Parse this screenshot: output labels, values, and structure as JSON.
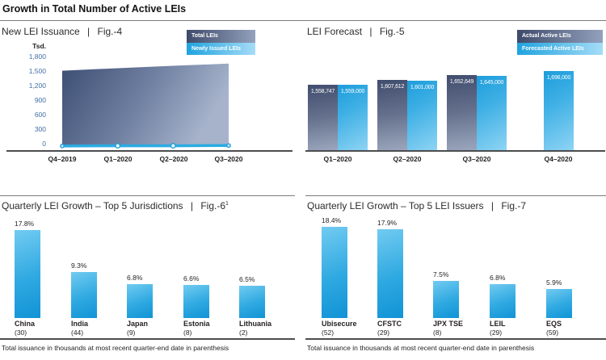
{
  "header": {
    "title": "Growth in Total Number of Active LEIs"
  },
  "colors": {
    "cyan": "#29abe2",
    "navy": "#3d4a6c",
    "light_cyan": "#8ed4f4",
    "axis_gray": "#4c4d4f",
    "tick_blue": "#406ea6"
  },
  "chart_data": [
    {
      "id": "fig4",
      "type": "area",
      "title": "New LEI Issuance",
      "fig": "Fig.-4",
      "title_display": "New LEI Issuance  |  Fig.-4",
      "legend": [
        "Total LEIs",
        "Newly Issued LEIs"
      ],
      "legend_position": "top-right",
      "grid": false,
      "y_unit": "Tsd.",
      "ylim": [
        0,
        1800
      ],
      "y_ticks": [
        "1,800",
        "1,500",
        "1,200",
        "900",
        "600",
        "300",
        "0"
      ],
      "categories": [
        "Q4–2019",
        "Q1–2020",
        "Q2–2020",
        "Q3–2020"
      ],
      "series": [
        {
          "name": "Total LEIs",
          "values": [
            1506,
            1559,
            1608,
            1653
          ]
        },
        {
          "name": "Newly Issued LEIs",
          "values": [
            35,
            40,
            40,
            45
          ]
        }
      ]
    },
    {
      "id": "fig5",
      "type": "bar",
      "title": "LEI Forecast",
      "fig": "Fig.-5",
      "title_display": "LEI Forecast  |  Fig.-5",
      "legend": [
        "Actual Active LEIs",
        "Forecasted Active LEIs"
      ],
      "legend_position": "top-right",
      "grid": false,
      "categories": [
        "Q1–2020",
        "Q2–2020",
        "Q3–2020",
        "Q4–2020"
      ],
      "series": [
        {
          "name": "Actual Active LEIs",
          "values": [
            1558747,
            1607612,
            1652649,
            null
          ],
          "labels": [
            "1,558,747",
            "1,607,612",
            "1,652,649",
            null
          ]
        },
        {
          "name": "Forecasted Active LEIs",
          "values": [
            1559000,
            1601000,
            1645000,
            1696000
          ],
          "labels": [
            "1,559,000",
            "1,601,000",
            "1,645,000",
            "1,696,000"
          ]
        }
      ]
    },
    {
      "id": "fig6",
      "type": "bar",
      "title": "Quarterly LEI Growth – Top 5 Jurisdictions",
      "fig": "Fig.-6",
      "fig_sup": "1",
      "title_display": "Quarterly LEI Growth – Top 5 Jurisdictions  |  Fig.-6",
      "categories": [
        "China",
        "India",
        "Japan",
        "Estonia",
        "Lithuania"
      ],
      "values": [
        17.8,
        9.3,
        6.8,
        6.6,
        6.5
      ],
      "value_labels": [
        "17.8%",
        "9.3%",
        "6.8%",
        "6.6%",
        "6.5%"
      ],
      "issuance": [
        30,
        44,
        9,
        8,
        2
      ],
      "issuance_labels": [
        "(30)",
        "(44)",
        "(9)",
        "(8)",
        "(2)"
      ],
      "footnote": "Total issuance in thousands at most recent quarter-end date in parenthesis",
      "grid": false
    },
    {
      "id": "fig7",
      "type": "bar",
      "title": "Quarterly LEI Growth – Top 5 LEI Issuers",
      "fig": "Fig.-7",
      "title_display": "Quarterly LEI Growth – Top 5 LEI Issuers  |  Fig.-7",
      "categories": [
        "Ubisecure",
        "CFSTC",
        "JPX TSE",
        "LEIL",
        "EQS"
      ],
      "values": [
        18.4,
        17.9,
        7.5,
        6.8,
        5.9
      ],
      "value_labels": [
        "18.4%",
        "17.9%",
        "7.5%",
        "6.8%",
        "5.9%"
      ],
      "issuance": [
        52,
        29,
        8,
        29,
        59
      ],
      "issuance_labels": [
        "(52)",
        "(29)",
        "(8)",
        "(29)",
        "(59)"
      ],
      "footnote": "Total issuance in thousands at most recent quarter-end date in parenthesis",
      "grid": false
    }
  ]
}
